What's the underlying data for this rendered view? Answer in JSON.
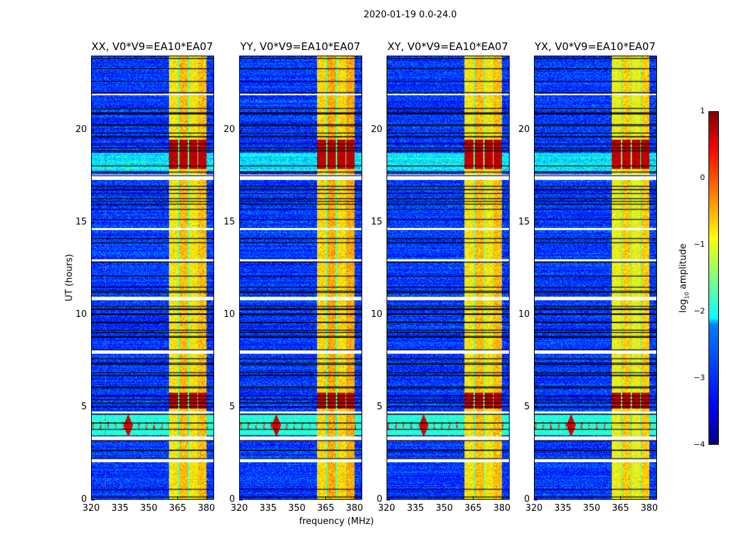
{
  "suptitle": "2020-01-19 0.0-24.0",
  "chart_data": {
    "type": "heatmap",
    "xlabel": "frequency (MHz)",
    "ylabel": "UT (hours)",
    "xlim": [
      320,
      384
    ],
    "ylim": [
      0,
      24
    ],
    "xticks": [
      "320",
      "335",
      "350",
      "365",
      "380"
    ],
    "xtick_values": [
      320,
      335,
      350,
      365,
      380
    ],
    "yticks": [
      "0",
      "5",
      "10",
      "15",
      "20"
    ],
    "ytick_values": [
      0,
      5,
      10,
      15,
      20
    ],
    "colorbar": {
      "label_prefix": "log",
      "label_sub": "10",
      "label_suffix": " amplitude",
      "colormap": "jet",
      "range": [
        -4,
        1
      ],
      "ticks": [
        "1",
        "0",
        "−1",
        "−2",
        "−3",
        "−4"
      ],
      "tick_values": [
        1,
        0,
        -1,
        -2,
        -3,
        -4
      ]
    },
    "panels": [
      {
        "title": "XX, V0*V9=EA10*EA07",
        "band_level": -0.7,
        "rfi_line_mhz": 327
      },
      {
        "title": "YY, V0*V9=EA10*EA07",
        "band_level": -0.6,
        "rfi_line_mhz": null
      },
      {
        "title": "XY, V0*V9=EA10*EA07",
        "band_level": -0.7,
        "rfi_line_mhz": null
      },
      {
        "title": "YX, V0*V9=EA10*EA07",
        "band_level": -0.8,
        "rfi_line_mhz": null
      }
    ],
    "bright_band_columns_mhz": [
      [
        360.5,
        365.2
      ],
      [
        365.9,
        370.2
      ],
      [
        370.9,
        375.3
      ],
      [
        375.6,
        380.0
      ]
    ],
    "strong_hours": [
      [
        17.9,
        19.5
      ],
      [
        4.9,
        5.8
      ]
    ],
    "rfi_hours": [
      3.5,
      4.6
    ],
    "rfi_peak_mhz": 339,
    "flagged_hours": [
      [
        2.0,
        2.2
      ],
      [
        3.2,
        3.4
      ],
      [
        4.65,
        4.75
      ],
      [
        7.9,
        8.1
      ],
      [
        10.8,
        11.0
      ],
      [
        17.3,
        17.6
      ],
      [
        12.9,
        13.0
      ],
      [
        14.6,
        14.7
      ],
      [
        21.9,
        22.0
      ]
    ],
    "base_level": -3.1
  }
}
